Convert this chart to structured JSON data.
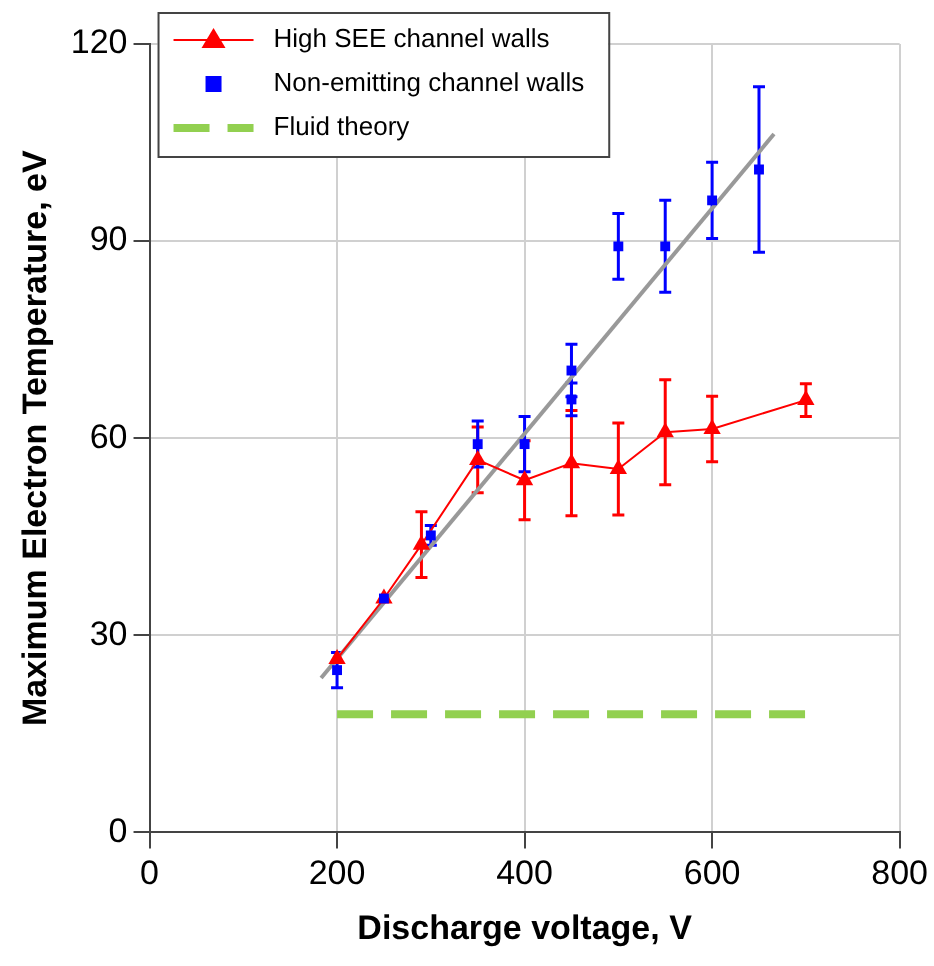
{
  "chart_data": {
    "type": "scatter",
    "xlabel": "Discharge voltage, V",
    "ylabel": "Maximum Electron Temperature, eV",
    "xlim": [
      0,
      800
    ],
    "xticks": [
      0,
      200,
      400,
      600,
      800
    ],
    "ylim": [
      0,
      120
    ],
    "yticks": [
      0,
      30,
      60,
      90,
      120
    ],
    "grid": true,
    "legend": "top left",
    "series": [
      {
        "name": "High SEE channel walls",
        "type": "line",
        "marker": "triangle",
        "line_style": "solid",
        "color": "#ff0000",
        "x": [
          200,
          250,
          290,
          350,
          400,
          450,
          500,
          550,
          600,
          700
        ],
        "values": [
          26.4,
          35.6,
          43.8,
          56.7,
          53.6,
          56.2,
          55.3,
          60.9,
          61.4,
          65.8
        ],
        "errors": [
          null,
          null,
          5,
          5,
          6,
          8,
          7,
          8,
          5,
          2.5
        ]
      },
      {
        "name": "Non-emitting channel walls",
        "type": "scatter",
        "marker": "square",
        "color": "#0000ff",
        "x": [
          200,
          250,
          300,
          350,
          400,
          450,
          450,
          500,
          550,
          600,
          650
        ],
        "values": [
          24.7,
          35.6,
          45.2,
          59.1,
          59.1,
          70.3,
          65.9,
          89.2,
          89.2,
          96.2,
          100.9
        ],
        "errors": [
          2.7,
          null,
          1.5,
          3.5,
          4.2,
          4,
          2.5,
          5,
          7,
          5.8,
          12.6
        ]
      },
      {
        "name": "Fluid theory",
        "type": "line",
        "marker": "none",
        "line_style": "dashed",
        "color": "#92d050",
        "x": [
          200,
          700
        ],
        "values": [
          18,
          18
        ]
      },
      {
        "type": "line",
        "marker": "none",
        "line_style": "solid",
        "color": "#999999",
        "x": [
          183,
          666
        ],
        "values": [
          23.5,
          106.3
        ]
      }
    ]
  }
}
